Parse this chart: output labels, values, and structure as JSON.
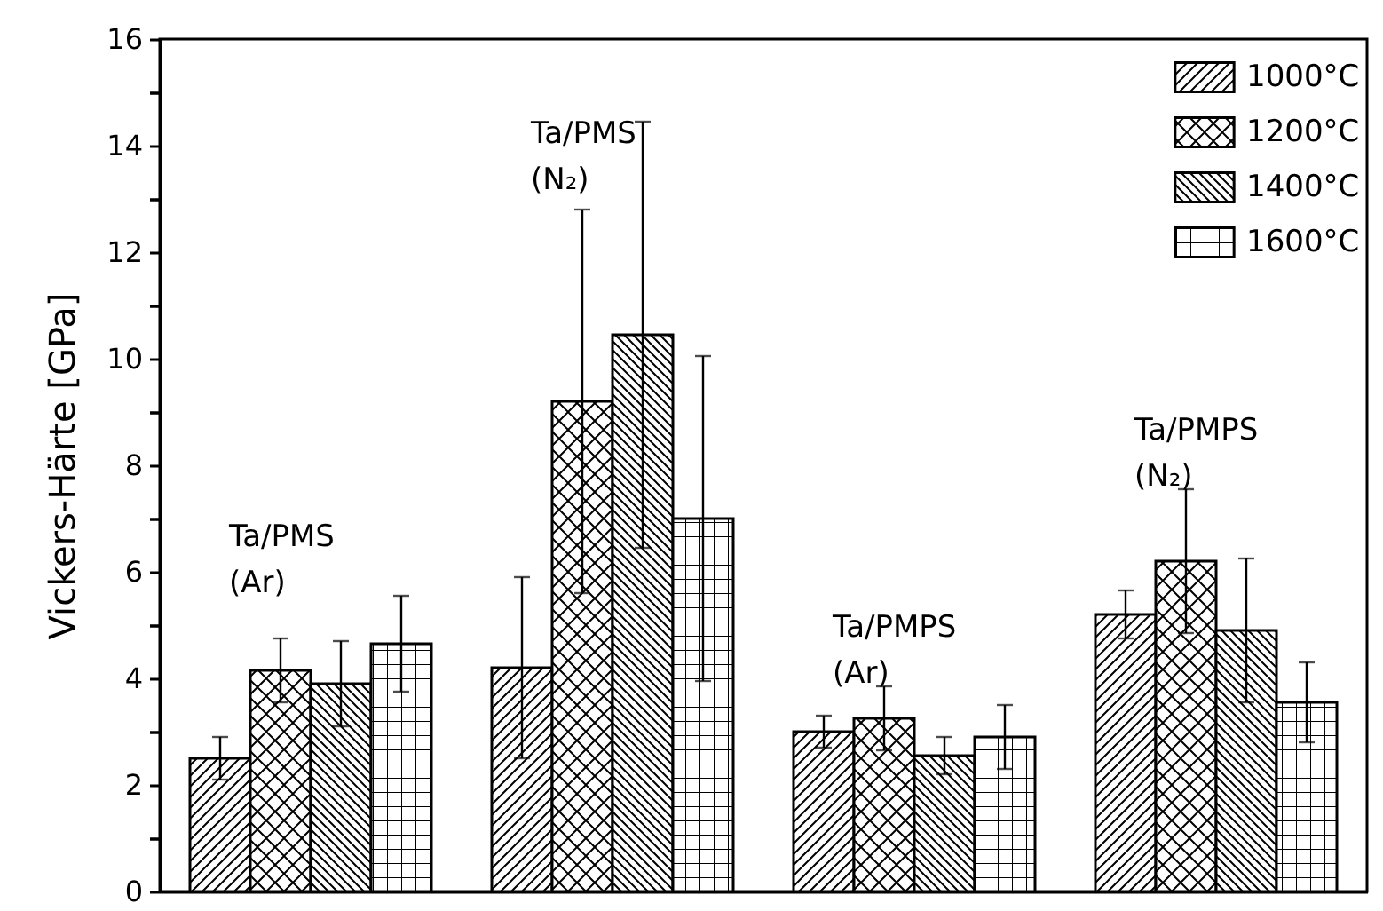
{
  "chart_data": {
    "type": "bar",
    "ylabel": "Vickers-Härte [GPa]",
    "categories": [
      null,
      null,
      null,
      null
    ],
    "ylim": [
      0,
      16
    ],
    "yticks": [
      0,
      {
        "value": 1,
        "label": null
      },
      2,
      {
        "value": 3,
        "label": null
      },
      4,
      {
        "value": 5,
        "label": null
      },
      6,
      {
        "value": 7,
        "label": null
      },
      8,
      {
        "value": 9,
        "label": null
      },
      10,
      {
        "value": 11,
        "label": null
      },
      12,
      {
        "value": 13,
        "label": null
      },
      14,
      {
        "value": 15,
        "label": null
      },
      16
    ],
    "legend": "top right",
    "annotations": [
      "Ta/PMS (Ar)",
      "Ta/PMS (N₂)",
      "Ta/PMPS (Ar)",
      "Ta/PMPS (N₂)"
    ],
    "series": [
      {
        "name": "1000°C",
        "color": "#000000",
        "values": [
          2.5,
          4.2,
          3.0,
          5.2
        ],
        "errors": [
          0.4,
          1.7,
          0.3,
          0.45
        ]
      },
      {
        "name": "1200°C",
        "color": "#000000",
        "values": [
          4.15,
          9.2,
          3.25,
          6.2
        ],
        "errors": [
          0.6,
          3.6,
          0.6,
          1.35
        ]
      },
      {
        "name": "1400°C",
        "color": "#000000",
        "values": [
          3.9,
          10.45,
          2.55,
          4.9
        ],
        "errors": [
          0.8,
          4.0,
          0.35,
          1.35
        ]
      },
      {
        "name": "1600°C",
        "color": "#000000",
        "values": [
          4.65,
          7.0,
          2.9,
          3.55
        ],
        "errors": [
          0.9,
          3.05,
          0.6,
          0.75
        ]
      }
    ]
  }
}
